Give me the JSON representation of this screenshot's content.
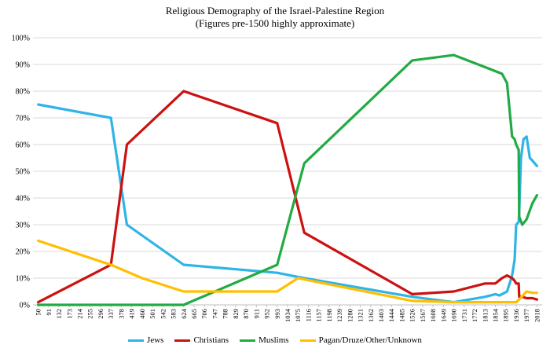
{
  "chart_data": {
    "type": "line",
    "title": "Religious Demography of the Israel-Palestine Region",
    "subtitle": "(Figures pre-1500 highly approximate)",
    "xlabel": "",
    "ylabel": "",
    "ylim": [
      0,
      100
    ],
    "y_ticks": [
      "0%",
      "10%",
      "20%",
      "30%",
      "40%",
      "50%",
      "60%",
      "70%",
      "80%",
      "90%",
      "100%"
    ],
    "x_ticks": [
      "50",
      "91",
      "132",
      "173",
      "214",
      "255",
      "296",
      "337",
      "378",
      "419",
      "460",
      "501",
      "542",
      "583",
      "624",
      "665",
      "706",
      "747",
      "788",
      "829",
      "870",
      "911",
      "952",
      "993",
      "1034",
      "1075",
      "1116",
      "1157",
      "1198",
      "1239",
      "1280",
      "1321",
      "1362",
      "1403",
      "1444",
      "1485",
      "1526",
      "1567",
      "1608",
      "1649",
      "1690",
      "1731",
      "1772",
      "1813",
      "1854",
      "1895",
      "1936",
      "1977",
      "2018"
    ],
    "xlim": [
      50,
      2018
    ],
    "grid": "horizontal",
    "legend_position": "bottom",
    "series": [
      {
        "name": "Jews",
        "color": "#2eb4e6",
        "x": [
          50,
          337,
          400,
          624,
          993,
          1100,
          1526,
          1690,
          1813,
          1854,
          1870,
          1900,
          1920,
          1930,
          1936,
          1946,
          1948,
          1955,
          1965,
          1977,
          1990,
          2000,
          2018
        ],
        "y": [
          75,
          70,
          30,
          15,
          12,
          10,
          3,
          1,
          3,
          4,
          3.5,
          5,
          11,
          17,
          30,
          31,
          35,
          55,
          62,
          63,
          55,
          54,
          52
        ]
      },
      {
        "name": "Christians",
        "color": "#cc1111",
        "x": [
          50,
          337,
          400,
          624,
          993,
          1100,
          1526,
          1690,
          1813,
          1854,
          1880,
          1900,
          1920,
          1930,
          1936,
          1946,
          1948,
          1960,
          1977,
          2000,
          2018
        ],
        "y": [
          1,
          15,
          60,
          80,
          68,
          27,
          4,
          5,
          8,
          8,
          10,
          11,
          10,
          9,
          8,
          8,
          3,
          3,
          2.5,
          2.5,
          2
        ]
      },
      {
        "name": "Muslims",
        "color": "#22aa44",
        "x": [
          50,
          624,
          993,
          1100,
          1526,
          1690,
          1813,
          1880,
          1900,
          1910,
          1920,
          1930,
          1936,
          1946,
          1948,
          1960,
          1977,
          2000,
          2018
        ],
        "y": [
          0,
          0,
          15,
          53,
          91.5,
          93.5,
          89,
          86.5,
          83,
          73,
          63,
          62,
          60,
          58,
          33,
          30,
          32,
          38,
          41
        ]
      },
      {
        "name": "Pagan/Druze/Other/Unknown",
        "color": "#ffbf00",
        "x": [
          50,
          337,
          460,
          624,
          993,
          1075,
          1526,
          1690,
          1936,
          1948,
          1977,
          2000,
          2018
        ],
        "y": [
          24,
          15,
          10,
          5,
          5,
          10,
          1.5,
          1,
          1,
          2,
          5,
          4.5,
          4.5
        ]
      }
    ]
  }
}
